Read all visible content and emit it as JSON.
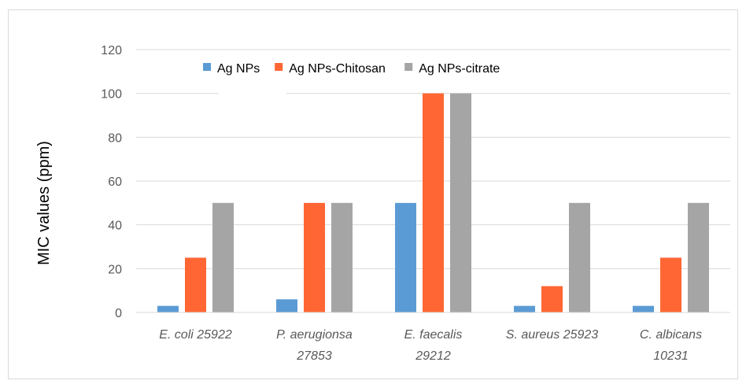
{
  "chart_data": {
    "type": "bar",
    "title": "",
    "xlabel": "",
    "ylabel": "MIC values (ppm)",
    "ylim": [
      0,
      120
    ],
    "yticks": [
      0,
      20,
      40,
      60,
      80,
      100,
      120
    ],
    "grid": true,
    "legend_position": "top",
    "categories": [
      [
        "E. coli 25922"
      ],
      [
        "P. aerugionsa",
        "27853"
      ],
      [
        "E. faecalis",
        "29212"
      ],
      [
        "S. aureus 25923"
      ],
      [
        "C. albicans",
        "10231"
      ]
    ],
    "series": [
      {
        "name": "Ag NPs",
        "color": "#5b9bd5",
        "values": [
          3,
          6,
          50,
          3,
          3
        ]
      },
      {
        "name": "Ag NPs-Chitosan",
        "color": "#ff6633",
        "values": [
          25,
          50,
          100,
          12,
          25
        ]
      },
      {
        "name": "Ag NPs-citrate",
        "color": "#a5a5a5",
        "values": [
          50,
          50,
          100,
          50,
          50
        ]
      }
    ]
  }
}
